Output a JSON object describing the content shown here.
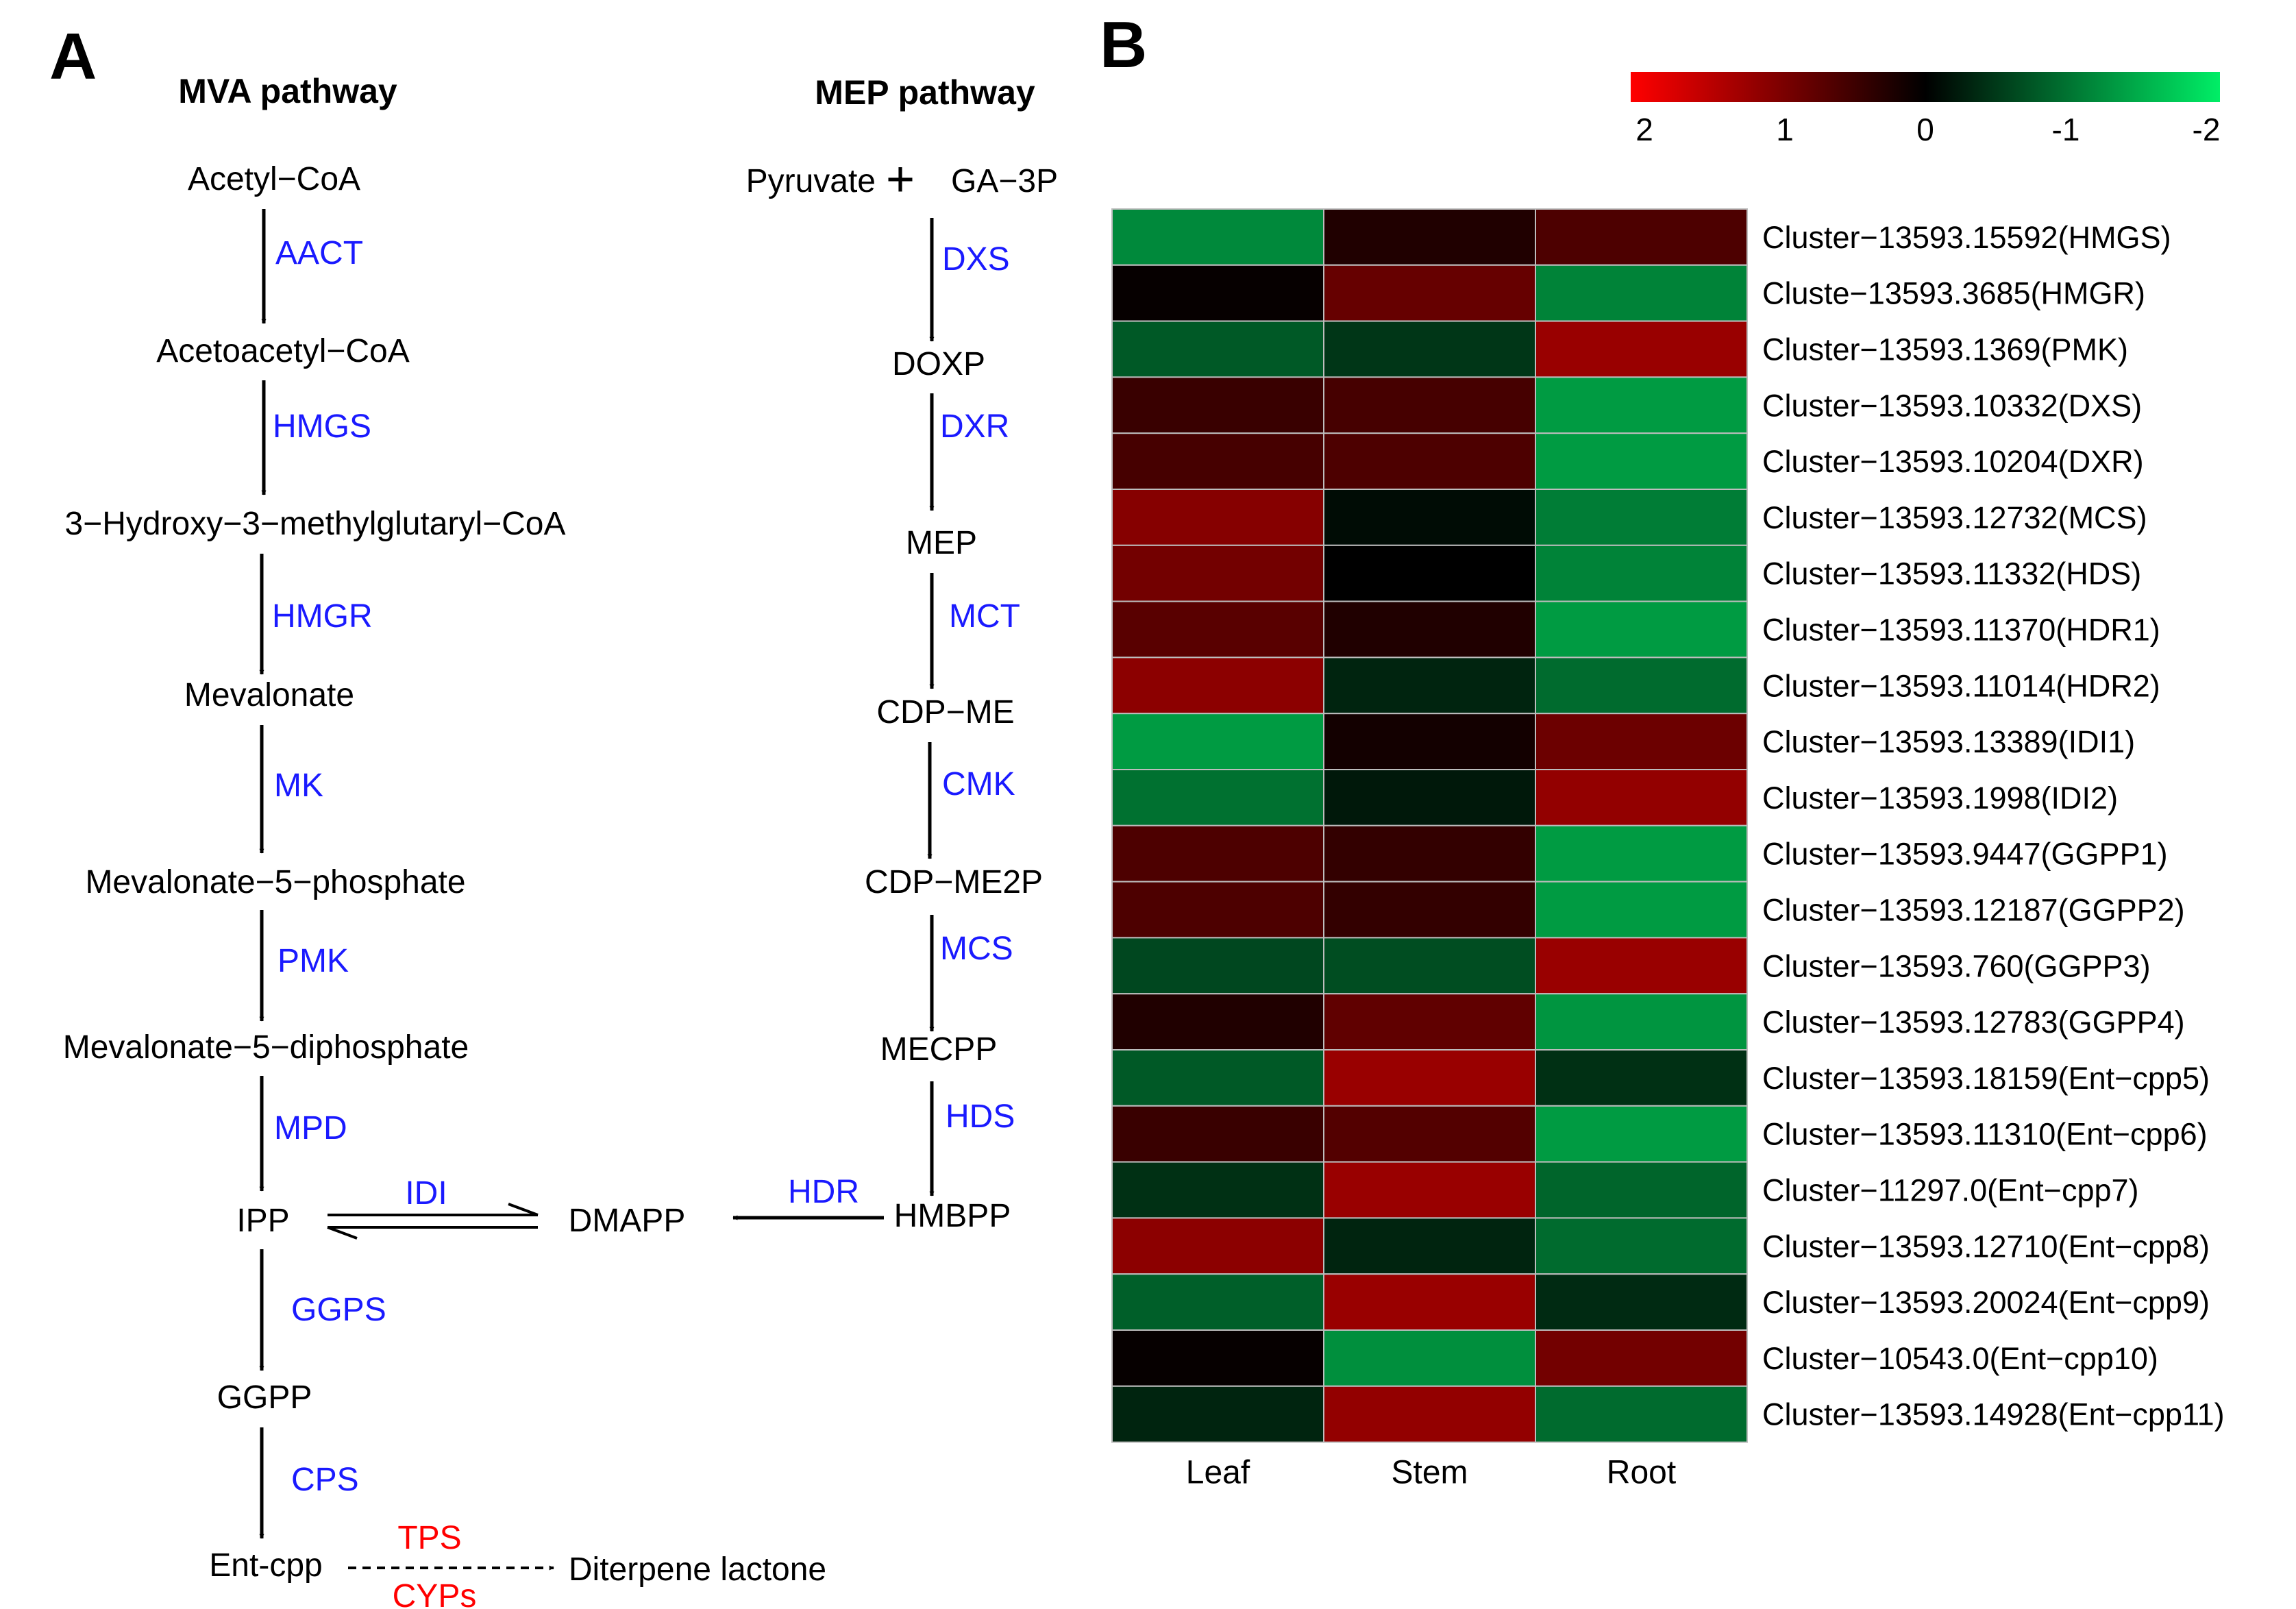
{
  "panels": {
    "a": "A",
    "b": "B"
  },
  "pathway": {
    "mva_title": "MVA pathway",
    "mep_title": "MEP pathway",
    "mva": {
      "acetyl_coa": "Acetyl−CoA",
      "aact": "AACT",
      "acetoacetyl_coa": "Acetoacetyl−CoA",
      "hmgs": "HMGS",
      "hmg_coa": "3−Hydroxy−3−methylglutaryl−CoA",
      "hmgr": "HMGR",
      "mevalonate": "Mevalonate",
      "mk": "MK",
      "mev5p": "Mevalonate−5−phosphate",
      "pmk": "PMK",
      "mev5pp": "Mevalonate−5−diphosphate",
      "mpd": "MPD",
      "ipp": "IPP",
      "idi": "IDI",
      "dmapp": "DMAPP",
      "ggps": "GGPS",
      "ggpp": "GGPP",
      "cps": "CPS",
      "entcpp": "Ent-cpp",
      "tps": "TPS",
      "cyps": "CYPs",
      "diterpene": "Diterpene lactone"
    },
    "mep": {
      "pyruvate": "Pyruvate",
      "plus": "+",
      "ga3p": "GA−3P",
      "dxs": "DXS",
      "doxp": "DOXP",
      "dxr": "DXR",
      "mep": "MEP",
      "mct": "MCT",
      "cdpme": "CDP−ME",
      "cmk": "CMK",
      "cdpme2p": "CDP−ME2P",
      "mcs": "MCS",
      "mecpp": "MECPP",
      "hds": "HDS",
      "hmbpp": "HMBPP",
      "hdr": "HDR"
    }
  },
  "colors": {
    "enzyme": "#1a1aff",
    "highlight": "#ff0000",
    "scale_high": "#ff0000",
    "scale_mid": "#000000",
    "scale_low": "#00ee66"
  },
  "chart_data": {
    "type": "heatmap",
    "title": "",
    "columns": [
      "Leaf",
      "Stem",
      "Root"
    ],
    "rows": [
      "Cluster−13593.15592(HMGS)",
      "Cluste−13593.3685(HMGR)",
      "Cluster−13593.1369(PMK)",
      "Cluster−13593.10332(DXS)",
      "Cluster−13593.10204(DXR)",
      "Cluster−13593.12732(MCS)",
      "Cluster−13593.11332(HDS)",
      "Cluster−13593.11370(HDR1)",
      "Cluster−13593.11014(HDR2)",
      "Cluster−13593.13389(IDI1)",
      "Cluster−13593.1998(IDI2)",
      "Cluster−13593.9447(GGPP1)",
      "Cluster−13593.12187(GGPP2)",
      "Cluster−13593.760(GGPP3)",
      "Cluster−13593.12783(GGPP4)",
      "Cluster−13593.18159(Ent−cpp5)",
      "Cluster−13593.11310(Ent−cpp6)",
      "Cluster−11297.0(Ent−cpp7)",
      "Cluster−13593.12710(Ent−cpp8)",
      "Cluster−13593.20024(Ent−cpp9)",
      "Cluster−10543.0(Ent−cpp10)",
      "Cluster−13593.14928(Ent−cpp11)"
    ],
    "values": [
      [
        -1.15,
        0.25,
        0.6
      ],
      [
        0.05,
        0.8,
        -1.1
      ],
      [
        -0.75,
        -0.45,
        1.2
      ],
      [
        0.45,
        0.55,
        -1.3
      ],
      [
        0.55,
        0.6,
        -1.3
      ],
      [
        1.05,
        -0.1,
        -1.05
      ],
      [
        0.9,
        0.0,
        -1.1
      ],
      [
        0.7,
        0.25,
        -1.3
      ],
      [
        1.1,
        -0.3,
        -0.9
      ],
      [
        -1.3,
        0.15,
        0.85
      ],
      [
        -0.95,
        -0.2,
        1.15
      ],
      [
        0.6,
        0.4,
        -1.3
      ],
      [
        0.6,
        0.4,
        -1.3
      ],
      [
        -0.6,
        -0.65,
        1.2
      ],
      [
        0.25,
        0.75,
        -1.25
      ],
      [
        -0.75,
        1.2,
        -0.4
      ],
      [
        0.45,
        0.65,
        -1.3
      ],
      [
        -0.4,
        1.2,
        -0.85
      ],
      [
        1.1,
        -0.3,
        -0.9
      ],
      [
        -0.8,
        1.2,
        -0.35
      ],
      [
        0.05,
        -1.2,
        0.9
      ],
      [
        -0.3,
        1.15,
        -0.9
      ]
    ],
    "scale": {
      "min": -2,
      "max": 2,
      "ticks": [
        "2",
        "1",
        "0",
        "-1",
        "-2"
      ]
    },
    "legend_position": "top-right"
  }
}
